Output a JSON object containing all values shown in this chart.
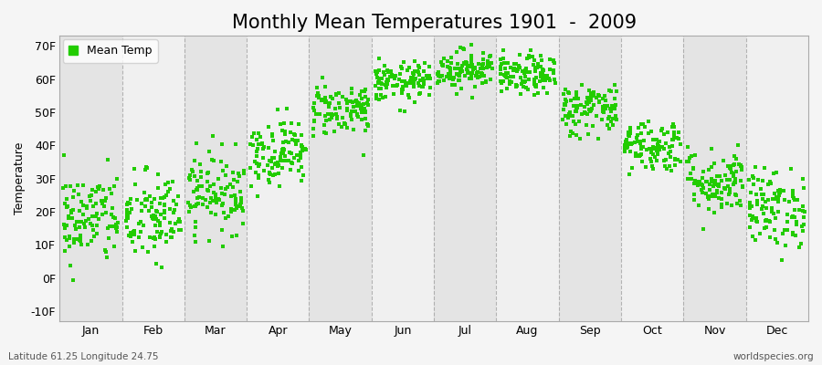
{
  "title": "Monthly Mean Temperatures 1901  -  2009",
  "ylabel": "Temperature",
  "subtitle_left": "Latitude 61.25 Longitude 24.75",
  "subtitle_right": "worldspecies.org",
  "legend_label": "Mean Temp",
  "marker_color": "#22cc00",
  "marker": "s",
  "marker_size": 3.5,
  "ylim": [
    -13,
    73
  ],
  "yticks": [
    -10,
    0,
    10,
    20,
    30,
    40,
    50,
    60,
    70
  ],
  "ytick_labels": [
    "-10F",
    "0F",
    "10F",
    "20F",
    "30F",
    "40F",
    "50F",
    "60F",
    "70F"
  ],
  "months": [
    "Jan",
    "Feb",
    "Mar",
    "Apr",
    "May",
    "Jun",
    "Jul",
    "Aug",
    "Sep",
    "Oct",
    "Nov",
    "Dec"
  ],
  "background_color": "#f5f5f5",
  "band_colors": [
    "#e4e4e4",
    "#f0f0f0"
  ],
  "grid_color": "#999999",
  "title_fontsize": 15,
  "axis_label_fontsize": 9,
  "tick_fontsize": 9,
  "n_years": 109,
  "seed": 42,
  "monthly_means": [
    18,
    18,
    26,
    38,
    51,
    59,
    63,
    61,
    51,
    40,
    29,
    21
  ],
  "monthly_stds": [
    7,
    7,
    6,
    5,
    4,
    3,
    3,
    3,
    4,
    4,
    5,
    6
  ]
}
